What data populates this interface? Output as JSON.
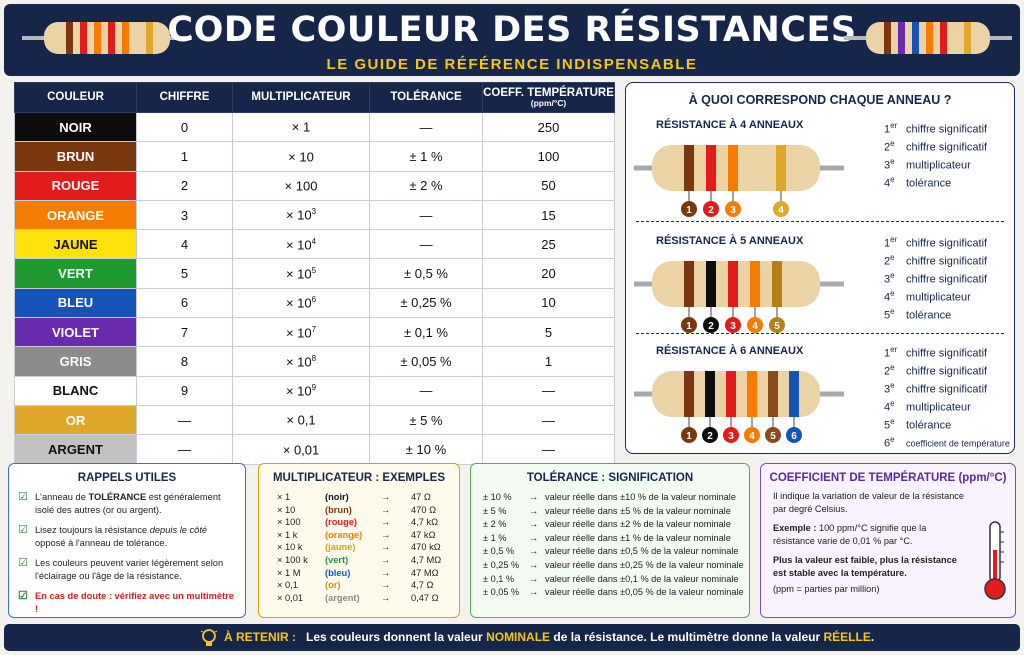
{
  "header": {
    "title": "CODE COULEUR DES RÉSISTANCES",
    "subtitle": "LE GUIDE DE RÉFÉRENCE INDISPENSABLE"
  },
  "table": {
    "headers": [
      "COULEUR",
      "CHIFFRE",
      "MULTIPLICATEUR",
      "TOLÉRANCE",
      "COEFF. TEMPÉRATURE"
    ],
    "header_unit": "(ppm/°C)",
    "rows": [
      {
        "name": "NOIR",
        "bg": "#0d0d0d",
        "fg": "#ffffff",
        "digit": "0",
        "mult_base": "× 1",
        "mult_exp": "",
        "tol": "—",
        "coef": "250"
      },
      {
        "name": "BRUN",
        "bg": "#7b3810",
        "fg": "#ffffff",
        "digit": "1",
        "mult_base": "× 10",
        "mult_exp": "",
        "tol": "± 1 %",
        "coef": "100"
      },
      {
        "name": "ROUGE",
        "bg": "#e21b1b",
        "fg": "#ffffff",
        "digit": "2",
        "mult_base": "× 100",
        "mult_exp": "",
        "tol": "± 2 %",
        "coef": "50"
      },
      {
        "name": "ORANGE",
        "bg": "#f57c00",
        "fg": "#ffffff",
        "digit": "3",
        "mult_base": "× 10",
        "mult_exp": "3",
        "tol": "—",
        "coef": "15"
      },
      {
        "name": "JAUNE",
        "bg": "#ffe20b",
        "fg": "#111111",
        "digit": "4",
        "mult_base": "× 10",
        "mult_exp": "4",
        "tol": "—",
        "coef": "25"
      },
      {
        "name": "VERT",
        "bg": "#1f9a2f",
        "fg": "#ffffff",
        "digit": "5",
        "mult_base": "× 10",
        "mult_exp": "5",
        "tol": "± 0,5 %",
        "coef": "20"
      },
      {
        "name": "BLEU",
        "bg": "#1553b8",
        "fg": "#ffffff",
        "digit": "6",
        "mult_base": "× 10",
        "mult_exp": "6",
        "tol": "± 0,25 %",
        "coef": "10"
      },
      {
        "name": "VIOLET",
        "bg": "#6a2bb0",
        "fg": "#ffffff",
        "digit": "7",
        "mult_base": "× 10",
        "mult_exp": "7",
        "tol": "± 0,1 %",
        "coef": "5"
      },
      {
        "name": "GRIS",
        "bg": "#8c8c8c",
        "fg": "#ffffff",
        "digit": "8",
        "mult_base": "× 10",
        "mult_exp": "8",
        "tol": "± 0,05 %",
        "coef": "1"
      },
      {
        "name": "BLANC",
        "bg": "#ffffff",
        "fg": "#111111",
        "digit": "9",
        "mult_base": "× 10",
        "mult_exp": "9",
        "tol": "—",
        "coef": "—"
      },
      {
        "name": "OR",
        "bg": "#e0a82a",
        "fg": "#ffffff",
        "digit": "—",
        "mult_base": "× 0,1",
        "mult_exp": "",
        "tol": "± 5 %",
        "coef": "—"
      },
      {
        "name": "ARGENT",
        "bg": "#c2c2c2",
        "fg": "#111111",
        "digit": "—",
        "mult_base": "× 0,01",
        "mult_exp": "",
        "tol": "± 10 %",
        "coef": "—"
      }
    ]
  },
  "rings": {
    "title": "À QUOI CORRESPOND CHAQUE ANNEAU ?",
    "sections": [
      {
        "heading": "RÉSISTANCE À 4 ANNEAUX",
        "bands": [
          "#7b3810",
          "#e21b1b",
          "#f57c00",
          "#e0a82a"
        ],
        "markers": [
          "1",
          "2",
          "3",
          "4"
        ],
        "legend": [
          {
            "num": "1",
            "sup": "er",
            "text": "chiffre significatif"
          },
          {
            "num": "2",
            "sup": "e",
            "text": "chiffre significatif"
          },
          {
            "num": "3",
            "sup": "e",
            "text": "multiplicateur"
          },
          {
            "num": "4",
            "sup": "e",
            "text": "tolérance"
          }
        ]
      },
      {
        "heading": "RÉSISTANCE À 5 ANNEAUX",
        "bands": [
          "#7b3810",
          "#0d0d0d",
          "#e21b1b",
          "#f57c00",
          "#b5801a"
        ],
        "markers": [
          "1",
          "2",
          "3",
          "4",
          "5"
        ],
        "legend": [
          {
            "num": "1",
            "sup": "er",
            "text": "chiffre significatif"
          },
          {
            "num": "2",
            "sup": "e",
            "text": "chiffre significatif"
          },
          {
            "num": "3",
            "sup": "e",
            "text": "chiffre significatif"
          },
          {
            "num": "4",
            "sup": "e",
            "text": "multiplicateur"
          },
          {
            "num": "5",
            "sup": "e",
            "text": "tolérance"
          }
        ]
      },
      {
        "heading": "RÉSISTANCE À 6 ANNEAUX",
        "bands": [
          "#7b3810",
          "#0d0d0d",
          "#e21b1b",
          "#f57c00",
          "#8a4a1c",
          "#1553b8"
        ],
        "markers": [
          "1",
          "2",
          "3",
          "4",
          "5",
          "6"
        ],
        "legend": [
          {
            "num": "1",
            "sup": "er",
            "text": "chiffre significatif"
          },
          {
            "num": "2",
            "sup": "e",
            "text": "chiffre significatif"
          },
          {
            "num": "3",
            "sup": "e",
            "text": "chiffre significatif"
          },
          {
            "num": "4",
            "sup": "e",
            "text": "multiplicateur"
          },
          {
            "num": "5",
            "sup": "e",
            "text": "tolérance"
          },
          {
            "num": "6",
            "sup": "e",
            "text": "coefficient de température"
          }
        ]
      }
    ]
  },
  "rappels": {
    "title": "RAPPELS UTILES",
    "tip1_pre": "L'anneau de ",
    "tip1_bold": "TOLÉRANCE",
    "tip1_post": " est généralement isolé des autres (or ou argent).",
    "tip2_pre": "Lisez toujours la résistance ",
    "tip2_em": "depuis le côté",
    "tip2_post": " opposé à l'anneau de tolérance.",
    "tip3": "Les couleurs peuvent varier légèrement selon l'éclairage ou l'âge de la résistance.",
    "tip4": "En cas de doute : vérifiez avec un multimètre !"
  },
  "multiplicateur": {
    "title": "MULTIPLICATEUR : EXEMPLES",
    "arrow": "→",
    "rows": [
      {
        "m": "× 1",
        "c": "(noir)",
        "color": "#111111",
        "v": "47 Ω"
      },
      {
        "m": "× 10",
        "c": "(brun)",
        "color": "#7b3810",
        "v": "470 Ω"
      },
      {
        "m": "× 100",
        "c": "(rouge)",
        "color": "#e21b1b",
        "v": "4,7 kΩ"
      },
      {
        "m": "× 1 k",
        "c": "(orange)",
        "color": "#f57c00",
        "v": "47 kΩ"
      },
      {
        "m": "× 10 k",
        "c": "(jaune)",
        "color": "#d4a900",
        "v": "470 kΩ"
      },
      {
        "m": "× 100 k",
        "c": "(vert)",
        "color": "#1f9a2f",
        "v": "4,7 MΩ"
      },
      {
        "m": "× 1 M",
        "c": "(bleu)",
        "color": "#1553b8",
        "v": "47 MΩ"
      },
      {
        "m": "× 0,1",
        "c": "(or)",
        "color": "#d0901a",
        "v": "4,7 Ω"
      },
      {
        "m": "× 0,01",
        "c": "(argent)",
        "color": "#888888",
        "v": "0,47 Ω"
      }
    ]
  },
  "tolerance": {
    "title": "TOLÉRANCE : SIGNIFICATION",
    "arrow": "→",
    "rows": [
      {
        "t": "± 10 %",
        "d": "valeur réelle dans ±10 % de la valeur nominale"
      },
      {
        "t": "± 5 %",
        "d": "valeur réelle dans ±5 % de la valeur nominale"
      },
      {
        "t": "± 2 %",
        "d": "valeur réelle dans ±2 % de la valeur nominale"
      },
      {
        "t": "± 1 %",
        "d": "valeur réelle dans ±1 % de la valeur nominale"
      },
      {
        "t": "± 0,5 %",
        "d": "valeur réelle dans ±0,5 % de la valeur nominale"
      },
      {
        "t": "± 0,25 %",
        "d": "valeur réelle dans ±0,25 % de la valeur nominale"
      },
      {
        "t": "± 0,1 %",
        "d": "valeur réelle dans ±0,1 % de la valeur nominale"
      },
      {
        "t": "± 0,05 %",
        "d": "valeur réelle dans ±0,05 % de la valeur nominale"
      }
    ]
  },
  "coefficient": {
    "title": "COEFFICIENT DE TEMPÉRATURE",
    "unit": "(ppm/°C)",
    "p1": "Il indique la variation de valeur de la résistance par degré Celsius.",
    "p2_bold": "Exemple :",
    "p2_rest": " 100 ppm/°C signifie que la résistance varie de 0,01 % par °C.",
    "p3": "Plus la valeur est faible, plus la résistance est stable avec la température.",
    "p4": "(ppm = parties par million)"
  },
  "footer": {
    "label": "À RETENIR :",
    "t1": "Les couleurs donnent la valeur ",
    "t2": "NOMINALE",
    "t3": " de la résistance. Le multimètre donne la valeur ",
    "t4": "RÉELLE",
    "t5": "."
  }
}
